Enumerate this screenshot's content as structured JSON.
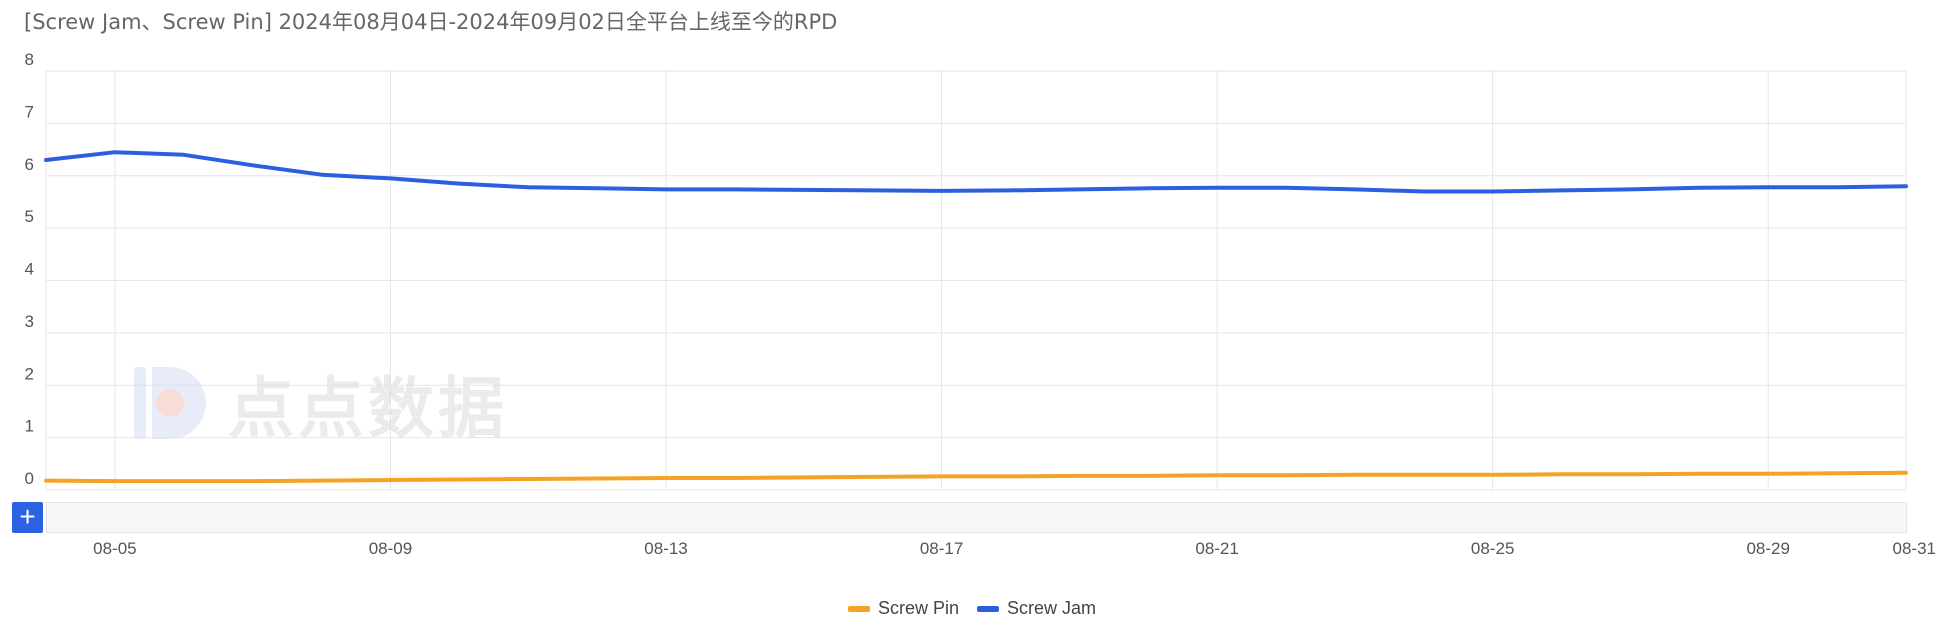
{
  "title": "[Screw Jam、Screw Pin]  2024年08月04日-2024年09月02日全平台上线至今的RPD",
  "watermark": {
    "text": "点点数据"
  },
  "zoom": {
    "button_label": "+"
  },
  "colors": {
    "screw_pin": "#f5a226",
    "screw_jam": "#2b5fe0",
    "grid": "#e6e6e6"
  },
  "chart_data": {
    "type": "line",
    "title": "[Screw Jam、Screw Pin]  2024年08月04日-2024年09月02日全平台上线至今的RPD",
    "xlabel": "",
    "ylabel": "",
    "ylim": [
      0,
      8
    ],
    "yticks": [
      0,
      1,
      2,
      3,
      4,
      5,
      6,
      7,
      8
    ],
    "x": [
      "08-04",
      "08-05",
      "08-06",
      "08-07",
      "08-08",
      "08-09",
      "08-10",
      "08-11",
      "08-12",
      "08-13",
      "08-14",
      "08-15",
      "08-16",
      "08-17",
      "08-18",
      "08-19",
      "08-20",
      "08-21",
      "08-22",
      "08-23",
      "08-24",
      "08-25",
      "08-26",
      "08-27",
      "08-28",
      "08-29",
      "08-30",
      "08-31"
    ],
    "xticks": [
      "08-05",
      "08-09",
      "08-13",
      "08-17",
      "08-21",
      "08-25",
      "08-29",
      "08-31"
    ],
    "grid": true,
    "legend_position": "bottom-center",
    "series": [
      {
        "name": "Screw Pin",
        "color": "#f5a226",
        "values": [
          0.18,
          0.17,
          0.17,
          0.17,
          0.18,
          0.19,
          0.2,
          0.21,
          0.22,
          0.23,
          0.23,
          0.24,
          0.25,
          0.26,
          0.26,
          0.27,
          0.27,
          0.28,
          0.28,
          0.29,
          0.29,
          0.29,
          0.3,
          0.3,
          0.31,
          0.31,
          0.32,
          0.33
        ]
      },
      {
        "name": "Screw Jam",
        "color": "#2b5fe0",
        "values": [
          6.3,
          6.45,
          6.4,
          6.2,
          6.02,
          5.95,
          5.85,
          5.78,
          5.76,
          5.74,
          5.74,
          5.73,
          5.72,
          5.71,
          5.72,
          5.74,
          5.76,
          5.77,
          5.77,
          5.74,
          5.7,
          5.7,
          5.72,
          5.74,
          5.77,
          5.78,
          5.78,
          5.8
        ]
      }
    ]
  }
}
